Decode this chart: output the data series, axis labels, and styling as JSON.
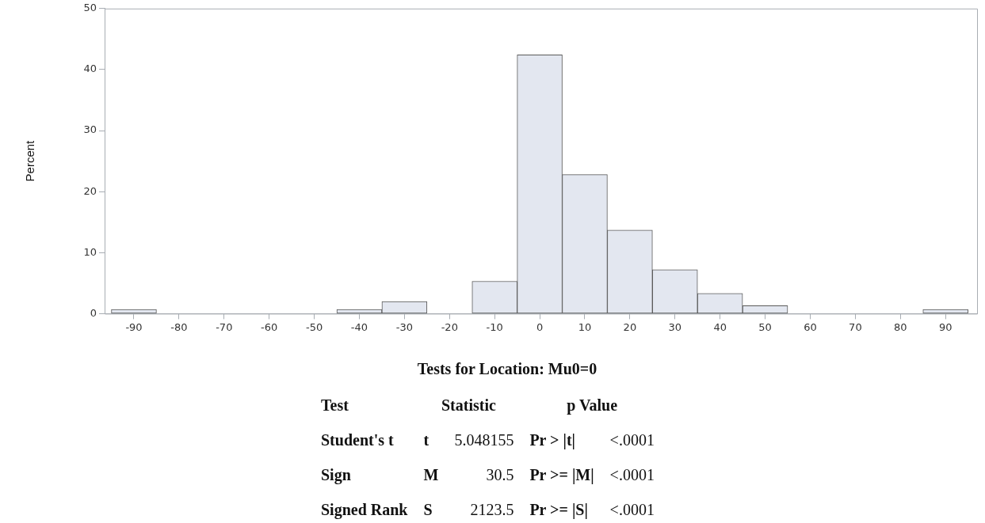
{
  "chart_data": {
    "type": "histogram",
    "ylabel": "Percent",
    "bins": [
      -95,
      -85,
      -75,
      -65,
      -55,
      -45,
      -35,
      -25,
      -15,
      -5,
      5,
      15,
      25,
      35,
      45,
      55,
      65,
      75,
      85,
      95
    ],
    "values": [
      0.7,
      0,
      0,
      0,
      0,
      0.7,
      2.0,
      0,
      5.3,
      42.4,
      22.8,
      13.7,
      7.2,
      3.3,
      1.3,
      0,
      0,
      0,
      0.7
    ],
    "color": "#e3e7f0",
    "xlim": [
      -96.5,
      97
    ],
    "xticks": [
      -90,
      -80,
      -70,
      -60,
      -50,
      -40,
      -30,
      -20,
      -10,
      0,
      10,
      20,
      30,
      40,
      50,
      60,
      70,
      80,
      90
    ],
    "ylim": [
      0,
      50
    ],
    "yticks": [
      0,
      10,
      20,
      30,
      40,
      50
    ],
    "grid": false,
    "legend": false,
    "annotations": [
      "Tests for Location: Mu0=0",
      "Test",
      "Statistic",
      "p Value",
      "Student's t",
      "t",
      "5.048155",
      "Pr > |t|",
      "<.0001",
      "Sign",
      "M",
      "30.5",
      "Pr >= |M|",
      "<.0001",
      "Signed Rank",
      "S",
      "2123.5",
      "Pr >= |S|",
      "<.0001"
    ]
  }
}
